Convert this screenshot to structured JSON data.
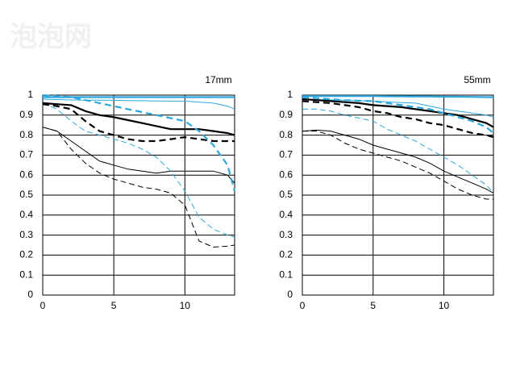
{
  "watermark": "泡泡网",
  "chart_data": [
    {
      "type": "line",
      "title": "17mm",
      "x": [
        0,
        1,
        2,
        3,
        4,
        5,
        6,
        7,
        8,
        9,
        10,
        11,
        12,
        13,
        13.5
      ],
      "xlim": [
        0,
        13.5
      ],
      "ylim": [
        0,
        1
      ],
      "xticks": [
        0,
        5,
        10
      ],
      "yticks": [
        0,
        0.1,
        0.2,
        0.3,
        0.4,
        0.5,
        0.6,
        0.7,
        0.8,
        0.9,
        1
      ],
      "grid": true,
      "series": [
        {
          "color": "#000000",
          "weight": "thin",
          "dash": true,
          "values": [
            0.84,
            0.82,
            0.73,
            0.66,
            0.61,
            0.58,
            0.56,
            0.54,
            0.53,
            0.51,
            0.45,
            0.27,
            0.24,
            0.245,
            0.25
          ]
        },
        {
          "color": "#000000",
          "weight": "thin",
          "dash": false,
          "values": [
            0.84,
            0.82,
            0.77,
            0.72,
            0.67,
            0.65,
            0.63,
            0.62,
            0.61,
            0.62,
            0.62,
            0.62,
            0.62,
            0.6,
            0.56
          ]
        },
        {
          "color": "#29a8e0",
          "weight": "thin",
          "dash": true,
          "values": [
            0.96,
            0.93,
            0.87,
            0.82,
            0.8,
            0.78,
            0.76,
            0.73,
            0.69,
            0.62,
            0.52,
            0.39,
            0.33,
            0.3,
            0.29
          ]
        },
        {
          "color": "#29a8e0",
          "weight": "thin",
          "dash": false,
          "values": [
            0.98,
            0.978,
            0.976,
            0.975,
            0.975,
            0.974,
            0.973,
            0.972,
            0.971,
            0.97,
            0.97,
            0.965,
            0.96,
            0.945,
            0.93
          ]
        },
        {
          "color": "#000000",
          "weight": "thick",
          "dash": true,
          "values": [
            0.955,
            0.945,
            0.93,
            0.87,
            0.82,
            0.8,
            0.78,
            0.77,
            0.77,
            0.78,
            0.79,
            0.78,
            0.77,
            0.77,
            0.77
          ]
        },
        {
          "color": "#000000",
          "weight": "thick",
          "dash": false,
          "values": [
            0.96,
            0.955,
            0.95,
            0.92,
            0.9,
            0.89,
            0.875,
            0.86,
            0.845,
            0.83,
            0.83,
            0.83,
            0.82,
            0.81,
            0.8
          ]
        },
        {
          "color": "#29a8e0",
          "weight": "thick",
          "dash": true,
          "values": [
            1,
            0.995,
            0.99,
            0.975,
            0.96,
            0.945,
            0.93,
            0.915,
            0.9,
            0.885,
            0.87,
            0.82,
            0.75,
            0.65,
            0.52
          ]
        },
        {
          "color": "#29a8e0",
          "weight": "thick",
          "dash": false,
          "values": [
            0.99,
            0.99,
            0.99,
            0.99,
            0.99,
            0.99,
            0.99,
            0.99,
            0.99,
            0.99,
            0.99,
            0.99,
            0.99,
            0.99,
            0.99
          ]
        }
      ]
    },
    {
      "type": "line",
      "title": "55mm",
      "x": [
        0,
        1,
        2,
        3,
        4,
        5,
        6,
        7,
        8,
        9,
        10,
        11,
        12,
        13,
        13.5
      ],
      "xlim": [
        0,
        13.5
      ],
      "ylim": [
        0,
        1
      ],
      "xticks": [
        0,
        5,
        10
      ],
      "yticks": [
        0,
        0.1,
        0.2,
        0.3,
        0.4,
        0.5,
        0.6,
        0.7,
        0.8,
        0.9,
        1
      ],
      "grid": true,
      "series": [
        {
          "color": "#000000",
          "weight": "thin",
          "dash": true,
          "values": [
            0.82,
            0.82,
            0.8,
            0.76,
            0.73,
            0.71,
            0.69,
            0.67,
            0.64,
            0.61,
            0.57,
            0.53,
            0.5,
            0.48,
            0.48
          ]
        },
        {
          "color": "#000000",
          "weight": "thin",
          "dash": false,
          "values": [
            0.82,
            0.825,
            0.82,
            0.8,
            0.78,
            0.75,
            0.73,
            0.71,
            0.69,
            0.66,
            0.62,
            0.59,
            0.56,
            0.53,
            0.51
          ]
        },
        {
          "color": "#29a8e0",
          "weight": "thin",
          "dash": true,
          "values": [
            0.93,
            0.93,
            0.92,
            0.9,
            0.885,
            0.87,
            0.83,
            0.8,
            0.77,
            0.73,
            0.69,
            0.65,
            0.6,
            0.55,
            0.51
          ]
        },
        {
          "color": "#29a8e0",
          "weight": "thin",
          "dash": false,
          "values": [
            0.98,
            0.978,
            0.976,
            0.974,
            0.972,
            0.97,
            0.966,
            0.963,
            0.96,
            0.945,
            0.93,
            0.92,
            0.91,
            0.9,
            0.89
          ]
        },
        {
          "color": "#000000",
          "weight": "thick",
          "dash": true,
          "values": [
            0.97,
            0.965,
            0.96,
            0.95,
            0.94,
            0.92,
            0.91,
            0.89,
            0.88,
            0.86,
            0.85,
            0.83,
            0.81,
            0.8,
            0.79
          ]
        },
        {
          "color": "#000000",
          "weight": "thick",
          "dash": false,
          "values": [
            0.98,
            0.975,
            0.97,
            0.965,
            0.96,
            0.95,
            0.945,
            0.94,
            0.93,
            0.92,
            0.91,
            0.9,
            0.88,
            0.86,
            0.84
          ]
        },
        {
          "color": "#29a8e0",
          "weight": "thick",
          "dash": true,
          "values": [
            0.99,
            0.985,
            0.98,
            0.975,
            0.972,
            0.97,
            0.96,
            0.95,
            0.94,
            0.93,
            0.91,
            0.89,
            0.87,
            0.84,
            0.81
          ]
        },
        {
          "color": "#29a8e0",
          "weight": "thick",
          "dash": false,
          "values": [
            0.995,
            0.995,
            0.995,
            0.995,
            0.995,
            0.995,
            0.994,
            0.994,
            0.993,
            0.993,
            0.992,
            0.992,
            0.991,
            0.99,
            0.99
          ]
        }
      ]
    }
  ]
}
